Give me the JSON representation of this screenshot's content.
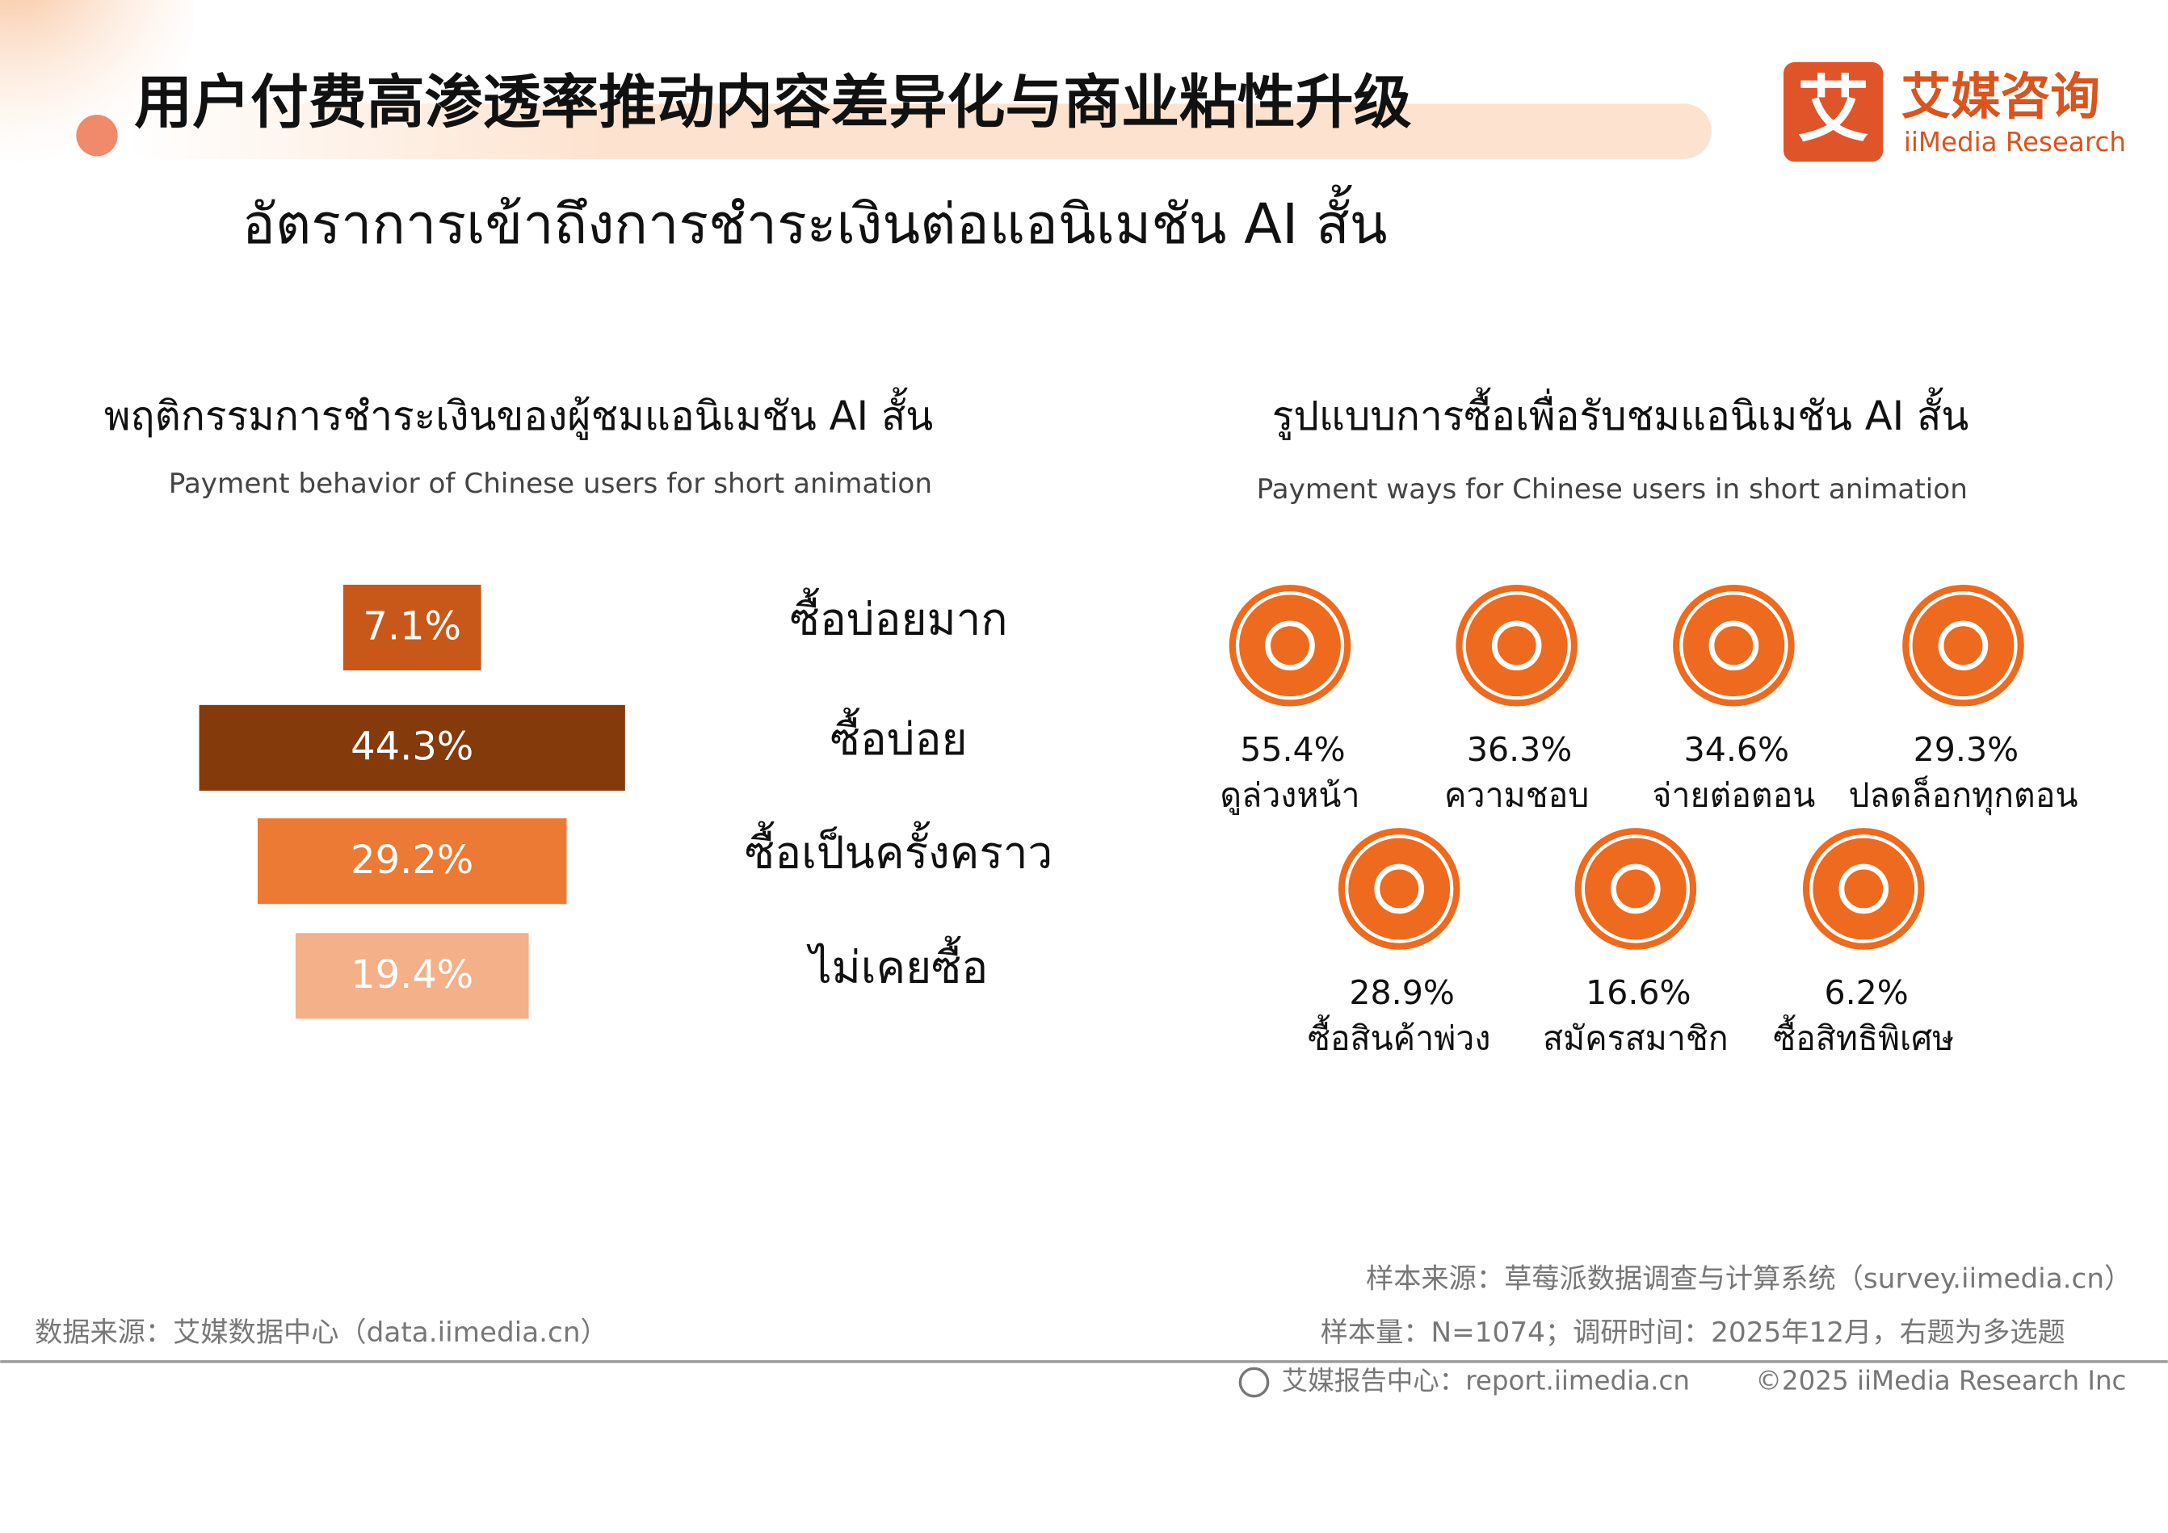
{
  "header": {
    "title": "用户付费高渗透率推动内容差异化与商业粘性升级",
    "subtitle": "อัตราการเข้าถึงการชำระเงินต่อแอนิเมชัน AI สั้น",
    "logo_mark": "艾",
    "logo_name": "艾媒咨询",
    "logo_en": "iiMedia Research"
  },
  "chart_data": [
    {
      "type": "funnel",
      "title": "พฤติกรรมการชำระเงินของผู้ชมแอนิเมชัน AI สั้น",
      "subtitle": "Payment behavior of Chinese users for short animation",
      "categories": [
        "ซื้อบ่อยมาก",
        "ซื้อบ่อย",
        "ซื้อเป็นครั้งคราว",
        "ไม่เคยซื้อ"
      ],
      "values": [
        7.1,
        44.3,
        29.2,
        19.4
      ],
      "value_labels": [
        "7.1%",
        "44.3%",
        "29.2%",
        "19.4%"
      ],
      "colors": [
        "#c8581a",
        "#843a0b",
        "#ec7a35",
        "#f4b088"
      ]
    },
    {
      "type": "icon-grid",
      "title": "รูปแบบการซื้อเพื่อรับชมแอนิเมชัน AI สั้น",
      "subtitle": "Payment ways for Chinese users in short animation",
      "categories": [
        "ดูล่วงหน้า",
        "ความชอบ",
        "จ่ายต่อตอน",
        "ปลดล็อกทุกตอน",
        "ซื้อสินค้าพ่วง",
        "สมัครสมาชิก",
        "ซื้อสิทธิพิเศษ"
      ],
      "values": [
        55.4,
        36.3,
        34.6,
        29.3,
        28.9,
        16.6,
        6.2
      ],
      "value_labels": [
        "55.4%",
        "36.3%",
        "34.6%",
        "29.3%",
        "28.9%",
        "16.6%",
        "6.2%"
      ],
      "color": "#ee6a1e"
    }
  ],
  "footer": {
    "source": "数据来源：艾媒数据中心（data.iimedia.cn）",
    "sample_source": "样本来源：草莓派数据调查与计算系统（survey.iimedia.cn）",
    "sample_info": "样本量：N=1074；调研时间：2025年12月，右题为多选题",
    "report_center": "艾媒报告中心：report.iimedia.cn",
    "copyright": "©2025  iiMedia Research  Inc"
  }
}
